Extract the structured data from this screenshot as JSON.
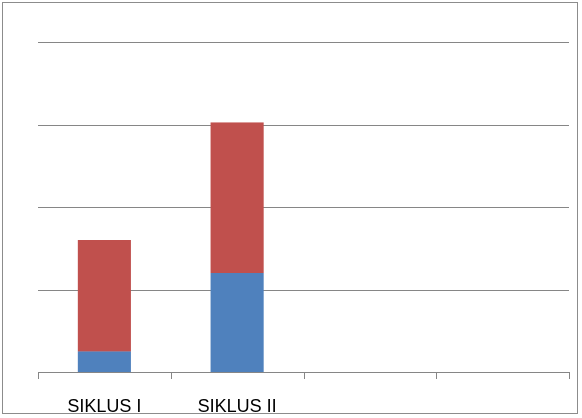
{
  "chart_data": {
    "type": "bar",
    "stacked": true,
    "categories": [
      "SIKLUS I",
      "SIKLUS II",
      "",
      ""
    ],
    "series": [
      {
        "color": "#4f81bd",
        "values": [
          0.5,
          2.4,
          0,
          0
        ]
      },
      {
        "color": "#c0504d",
        "values": [
          2.7,
          3.65,
          0,
          0
        ]
      }
    ],
    "ylim": [
      0,
      8
    ],
    "grid": true,
    "legend": "none",
    "axis_tick_labels_shown": false
  }
}
